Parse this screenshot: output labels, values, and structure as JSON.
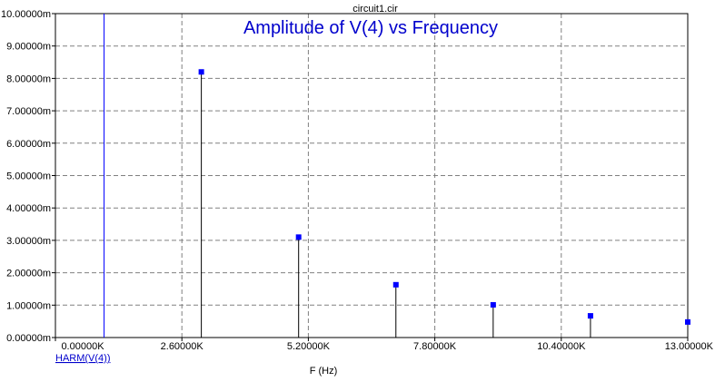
{
  "window": {
    "title": "circuit1.cir"
  },
  "chart_data": {
    "type": "scatter",
    "style": "stem",
    "title": "Amplitude of V(4) vs Frequency",
    "xlabel": "F (Hz)",
    "ylabel": "",
    "xlim": [
      0,
      13000
    ],
    "ylim": [
      0,
      0.01
    ],
    "grid": true,
    "x_ticks": [
      0,
      2600,
      5200,
      7800,
      10400,
      13000
    ],
    "x_tick_labels": [
      "0.00000K",
      "2.60000K",
      "5.20000K",
      "7.80000K",
      "10.40000K",
      "13.00000K"
    ],
    "y_ticks": [
      0,
      0.001,
      0.002,
      0.003,
      0.004,
      0.005,
      0.006,
      0.007,
      0.008,
      0.009,
      0.01
    ],
    "y_tick_labels": [
      "0.00000m",
      "1.00000m",
      "2.00000m",
      "3.00000m",
      "4.00000m",
      "5.00000m",
      "6.00000m",
      "7.00000m",
      "8.00000m",
      "9.00000m",
      "10.00000m"
    ],
    "marker_line_x": 1000,
    "series": [
      {
        "name": "HARM(V(4))",
        "color": "#0000ff",
        "x": [
          1000,
          2000,
          3000,
          4000,
          5000,
          6000,
          7000,
          8000,
          9000,
          10000,
          11000,
          12000,
          13000
        ],
        "y": [
          0.0,
          0.0,
          0.0082,
          0.0,
          0.0031,
          0.0,
          0.00163,
          0.0,
          0.00101,
          0.0,
          0.00067,
          0.0,
          0.00048
        ]
      }
    ]
  }
}
